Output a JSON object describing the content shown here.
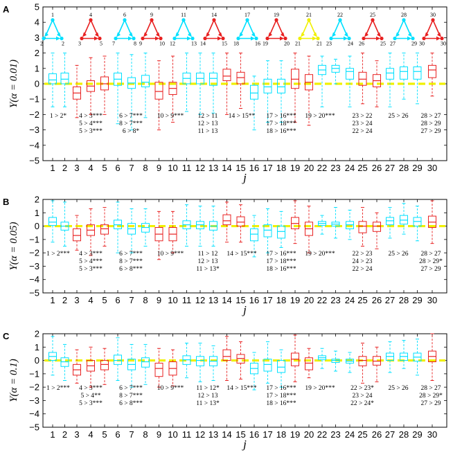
{
  "chart_data": [
    {
      "type": "box",
      "panel_label": "A",
      "ylabel": "Y(α = 0.01)",
      "xlabel": "j",
      "ylim": [
        -5,
        5
      ],
      "yticks": [
        "−5",
        "−4",
        "−3",
        "−2",
        "−1",
        "0",
        "1",
        "2",
        "3",
        "4",
        "5"
      ],
      "categories": [
        "1",
        "2",
        "3",
        "4",
        "5",
        "6",
        "7",
        "8",
        "9",
        "10",
        "11",
        "12",
        "13",
        "14",
        "15",
        "16",
        "17",
        "18",
        "19",
        "20",
        "22",
        "23",
        "24",
        "25",
        "26",
        "27",
        "28",
        "29",
        "30"
      ],
      "boxes": [
        {
          "min": -1.5,
          "q1": 0.0,
          "median": 0.25,
          "q3": 0.65,
          "max": 2.0
        },
        {
          "min": -1.5,
          "q1": 0.0,
          "median": 0.3,
          "q3": 0.7,
          "max": 2.0
        },
        {
          "min": -2.2,
          "q1": -1.0,
          "median": -0.6,
          "q3": -0.2,
          "max": 1.2
        },
        {
          "min": -2.0,
          "q1": -0.5,
          "median": -0.15,
          "q3": 0.2,
          "max": 1.7
        },
        {
          "min": -2.0,
          "q1": -0.4,
          "median": 0.0,
          "q3": 0.45,
          "max": 1.8
        },
        {
          "min": -2.6,
          "q1": -0.1,
          "median": 0.3,
          "q3": 0.7,
          "max": 2.0
        },
        {
          "min": -3.0,
          "q1": -0.3,
          "median": 0.05,
          "q3": 0.4,
          "max": 1.9
        },
        {
          "min": -2.2,
          "q1": -0.2,
          "median": 0.1,
          "q3": 0.55,
          "max": 2.0
        },
        {
          "min": -3.0,
          "q1": -1.0,
          "median": -0.5,
          "q3": 0.1,
          "max": 1.5
        },
        {
          "min": -2.5,
          "q1": -0.7,
          "median": -0.3,
          "q3": 0.1,
          "max": 1.8
        },
        {
          "min": -1.8,
          "q1": 0.0,
          "median": 0.35,
          "q3": 0.7,
          "max": 2.0
        },
        {
          "min": -2.0,
          "q1": 0.0,
          "median": 0.35,
          "q3": 0.7,
          "max": 2.0
        },
        {
          "min": -1.9,
          "q1": -0.1,
          "median": 0.35,
          "q3": 0.7,
          "max": 2.0
        },
        {
          "min": -2.0,
          "q1": 0.2,
          "median": 0.5,
          "q3": 0.95,
          "max": 2.0
        },
        {
          "min": -1.6,
          "q1": 0.0,
          "median": 0.4,
          "q3": 0.75,
          "max": 2.0
        },
        {
          "min": -3.0,
          "q1": -1.0,
          "median": -0.6,
          "q3": -0.1,
          "max": 0.5
        },
        {
          "min": -2.5,
          "q1": -0.6,
          "median": -0.2,
          "q3": 0.3,
          "max": 1.5
        },
        {
          "min": -2.5,
          "q1": -0.6,
          "median": -0.2,
          "q3": 0.3,
          "max": 1.5
        },
        {
          "min": -2.5,
          "q1": -0.3,
          "median": 0.3,
          "q3": 0.95,
          "max": 2.0
        },
        {
          "min": -2.7,
          "q1": -0.4,
          "median": 0.1,
          "q3": 0.6,
          "max": 1.8
        },
        {
          "min": -1.5,
          "q1": 0.6,
          "median": 0.9,
          "q3": 1.2,
          "max": 1.8
        },
        {
          "min": 0.0,
          "q1": 0.75,
          "median": 1.0,
          "q3": 1.2,
          "max": 1.6
        },
        {
          "min": -1.5,
          "q1": 0.3,
          "median": 0.8,
          "q3": 1.0,
          "max": 1.8
        },
        {
          "min": -1.3,
          "q1": -0.1,
          "median": 0.3,
          "q3": 0.75,
          "max": 2.0
        },
        {
          "min": -1.5,
          "q1": -0.2,
          "median": 0.2,
          "q3": 0.6,
          "max": 1.5
        },
        {
          "min": -1.5,
          "q1": 0.3,
          "median": 0.7,
          "q3": 1.0,
          "max": 2.0
        },
        {
          "min": -1.0,
          "q1": 0.3,
          "median": 0.8,
          "q3": 1.1,
          "max": 2.0
        },
        {
          "min": -1.3,
          "q1": 0.3,
          "median": 0.8,
          "q3": 1.1,
          "max": 2.0
        },
        {
          "min": -0.8,
          "q1": 0.4,
          "median": 0.9,
          "q3": 1.2,
          "max": 2.0
        }
      ],
      "annotations": [
        [
          "1 > 2*"
        ],
        [
          "4 > 3***",
          "5 > 4***",
          "5 > 3***"
        ],
        [
          "6 > 7***",
          "8 > 7***",
          "6 > 8*"
        ],
        [
          "10 > 9***"
        ],
        [
          "12 > 11",
          "12 > 13",
          "11 > 13"
        ],
        [
          "14 > 15**"
        ],
        [
          "17 > 16***",
          "17 > 18***",
          "18 > 16***"
        ],
        [
          "19 > 20***"
        ],
        [
          "23 > 22",
          "23 > 24",
          "22 > 24"
        ],
        [
          "25 > 26"
        ],
        [
          "28 > 27",
          "28 > 29",
          "27 > 29"
        ]
      ],
      "motifs": [
        {
          "top": "1",
          "left": "2",
          "right": "2",
          "color": "#00e0ff"
        },
        {
          "top": "4",
          "left": "3",
          "right": "5",
          "color": "#e82020"
        },
        {
          "top": "6",
          "left": "7",
          "right": "8",
          "color": "#00e0ff"
        },
        {
          "top": "9",
          "left": "9",
          "right": "10",
          "color": "#e82020"
        },
        {
          "top": "11",
          "left": "12",
          "right": "13",
          "color": "#00e0ff"
        },
        {
          "top": "14",
          "left": "14",
          "right": "15",
          "color": "#e82020"
        },
        {
          "top": "17",
          "left": "18",
          "right": "16",
          "color": "#00e0ff"
        },
        {
          "top": "19",
          "left": "19",
          "right": "20",
          "color": "#e82020"
        },
        {
          "top": "21",
          "left": "21",
          "right": "21",
          "color": "#f0f000"
        },
        {
          "top": "22",
          "left": "23",
          "right": "24",
          "color": "#00e0ff"
        },
        {
          "top": "25",
          "left": "26",
          "right": "25",
          "color": "#e82020"
        },
        {
          "top": "28",
          "left": "27",
          "right": "29",
          "color": "#00e0ff"
        },
        {
          "top": "30",
          "left": "30",
          "right": "30",
          "color": "#e82020"
        }
      ]
    },
    {
      "type": "box",
      "panel_label": "B",
      "ylabel": "Y(α = 0.05)",
      "xlabel": "j",
      "ylim": [
        -5,
        2
      ],
      "yticks": [
        "−5",
        "−4",
        "−3",
        "−2",
        "−1",
        "0",
        "1",
        "2"
      ],
      "categories": [
        "1",
        "2",
        "3",
        "4",
        "5",
        "6",
        "7",
        "8",
        "9",
        "10",
        "11",
        "12",
        "13",
        "14",
        "15",
        "16",
        "17",
        "18",
        "19",
        "20",
        "22",
        "23",
        "24",
        "25",
        "26",
        "27",
        "28",
        "29",
        "30"
      ],
      "boxes": [
        {
          "min": -1.2,
          "q1": 0.05,
          "median": 0.3,
          "q3": 0.65,
          "max": 1.9
        },
        {
          "min": -1.5,
          "q1": -0.3,
          "median": 0.0,
          "q3": 0.3,
          "max": 1.8
        },
        {
          "min": -1.8,
          "q1": -1.1,
          "median": -0.7,
          "q3": -0.2,
          "max": 0.8
        },
        {
          "min": -2.2,
          "q1": -0.7,
          "median": -0.3,
          "q3": 0.1,
          "max": 1.3
        },
        {
          "min": -1.5,
          "q1": -0.6,
          "median": -0.2,
          "q3": 0.1,
          "max": 1.4
        },
        {
          "min": -2.0,
          "q1": -0.2,
          "median": 0.1,
          "q3": 0.45,
          "max": 1.8
        },
        {
          "min": -2.0,
          "q1": -0.6,
          "median": -0.2,
          "q3": 0.2,
          "max": 1.3
        },
        {
          "min": -1.5,
          "q1": -0.45,
          "median": -0.1,
          "q3": 0.2,
          "max": 1.3
        },
        {
          "min": -2.5,
          "q1": -1.1,
          "median": -0.6,
          "q3": -0.1,
          "max": 1.1
        },
        {
          "min": -2.0,
          "q1": -1.1,
          "median": -0.6,
          "q3": -0.1,
          "max": 1.1
        },
        {
          "min": -1.5,
          "q1": -0.2,
          "median": 0.1,
          "q3": 0.4,
          "max": 1.6
        },
        {
          "min": -1.5,
          "q1": -0.2,
          "median": 0.1,
          "q3": 0.35,
          "max": 1.5
        },
        {
          "min": -1.5,
          "q1": -0.3,
          "median": 0.0,
          "q3": 0.35,
          "max": 1.5
        },
        {
          "min": -1.2,
          "q1": 0.1,
          "median": 0.4,
          "q3": 0.85,
          "max": 1.8
        },
        {
          "min": -1.2,
          "q1": 0.0,
          "median": 0.3,
          "q3": 0.7,
          "max": 1.6
        },
        {
          "min": -2.3,
          "q1": -1.1,
          "median": -0.6,
          "q3": -0.2,
          "max": 0.8
        },
        {
          "min": -2.0,
          "q1": -0.8,
          "median": -0.3,
          "q3": 0.1,
          "max": 1.3
        },
        {
          "min": -1.6,
          "q1": -0.9,
          "median": -0.4,
          "q3": 0.0,
          "max": 1.1
        },
        {
          "min": -1.3,
          "q1": -0.2,
          "median": 0.2,
          "q3": 0.65,
          "max": 1.9
        },
        {
          "min": -2.0,
          "q1": -0.7,
          "median": -0.2,
          "q3": 0.3,
          "max": 1.5
        },
        {
          "min": -0.6,
          "q1": 0.05,
          "median": 0.2,
          "q3": 0.35,
          "max": 0.8
        },
        {
          "min": -0.9,
          "q1": 0.0,
          "median": 0.15,
          "q3": 0.3,
          "max": 1.4
        },
        {
          "min": -1.0,
          "q1": -0.2,
          "median": 0.1,
          "q3": 0.35,
          "max": 1.2
        },
        {
          "min": -1.5,
          "q1": -0.5,
          "median": 0.0,
          "q3": 0.35,
          "max": 1.4
        },
        {
          "min": -1.7,
          "q1": -0.4,
          "median": 0.0,
          "q3": 0.3,
          "max": 1.0
        },
        {
          "min": -0.9,
          "q1": 0.1,
          "median": 0.4,
          "q3": 0.65,
          "max": 1.4
        },
        {
          "min": -0.6,
          "q1": 0.15,
          "median": 0.45,
          "q3": 0.8,
          "max": 1.7
        },
        {
          "min": -1.1,
          "q1": 0.0,
          "median": 0.35,
          "q3": 0.65,
          "max": 1.5
        },
        {
          "min": -1.3,
          "q1": -0.1,
          "median": 0.3,
          "q3": 0.75,
          "max": 1.9
        }
      ],
      "annotations": [
        [
          "1 > 2***"
        ],
        [
          "4 > 3***",
          "5 > 4***",
          "5 > 3***"
        ],
        [
          "6 > 7***",
          "8 > 7***",
          "6 > 8***"
        ],
        [
          "10 > 9***"
        ],
        [
          "11 > 12",
          "12 > 13",
          "11 > 13*"
        ],
        [
          "14 > 15***"
        ],
        [
          "17 > 16***",
          "17 > 18***",
          "18 > 16***"
        ],
        [
          "19 > 20***"
        ],
        [
          "22 > 23",
          "24 > 23",
          "22 > 24"
        ],
        [
          "25 > 26"
        ],
        [
          "28 > 27",
          "28 > 29*",
          "27 > 29"
        ]
      ]
    },
    {
      "type": "box",
      "panel_label": "C",
      "ylabel": "Y(α = 0.1)",
      "xlabel": "j",
      "ylim": [
        -5,
        2
      ],
      "yticks": [
        "−5",
        "−4",
        "−3",
        "−2",
        "−1",
        "0",
        "1",
        "2"
      ],
      "categories": [
        "1",
        "2",
        "3",
        "4",
        "5",
        "6",
        "7",
        "8",
        "9",
        "10",
        "11",
        "12",
        "13",
        "14",
        "15",
        "16",
        "17",
        "18",
        "19",
        "20",
        "22",
        "23",
        "24",
        "25",
        "26",
        "27",
        "28",
        "29",
        "30"
      ],
      "boxes": [
        {
          "min": -1.1,
          "q1": 0.0,
          "median": 0.3,
          "q3": 0.6,
          "max": 1.8
        },
        {
          "min": -1.5,
          "q1": -0.45,
          "median": -0.1,
          "q3": 0.2,
          "max": 1.2
        },
        {
          "min": -1.7,
          "q1": -1.1,
          "median": -0.7,
          "q3": -0.3,
          "max": 0.8
        },
        {
          "min": -2.0,
          "q1": -0.8,
          "median": -0.4,
          "q3": 0.0,
          "max": 1.0
        },
        {
          "min": -1.8,
          "q1": -0.7,
          "median": -0.3,
          "q3": 0.0,
          "max": 0.9
        },
        {
          "min": -1.5,
          "q1": -0.3,
          "median": 0.0,
          "q3": 0.4,
          "max": 1.7
        },
        {
          "min": -2.0,
          "q1": -0.7,
          "median": -0.3,
          "q3": 0.1,
          "max": 1.2
        },
        {
          "min": -1.8,
          "q1": -0.5,
          "median": -0.1,
          "q3": 0.2,
          "max": 1.2
        },
        {
          "min": -2.0,
          "q1": -1.2,
          "median": -0.6,
          "q3": -0.2,
          "max": 0.9
        },
        {
          "min": -1.9,
          "q1": -1.1,
          "median": -0.6,
          "q3": -0.1,
          "max": 0.8
        },
        {
          "min": -1.3,
          "q1": -0.3,
          "median": 0.05,
          "q3": 0.35,
          "max": 1.3
        },
        {
          "min": -1.6,
          "q1": -0.4,
          "median": 0.0,
          "q3": 0.3,
          "max": 1.3
        },
        {
          "min": -1.5,
          "q1": -0.4,
          "median": -0.05,
          "q3": 0.3,
          "max": 1.1
        },
        {
          "min": -1.5,
          "q1": 0.0,
          "median": 0.3,
          "q3": 0.8,
          "max": 1.8
        },
        {
          "min": -1.4,
          "q1": -0.2,
          "median": 0.15,
          "q3": 0.45,
          "max": 1.4
        },
        {
          "min": -2.2,
          "q1": -1.0,
          "median": -0.6,
          "q3": -0.2,
          "max": 0.6
        },
        {
          "min": -1.7,
          "q1": -0.8,
          "median": -0.3,
          "q3": 0.1,
          "max": 1.4
        },
        {
          "min": -2.0,
          "q1": -0.9,
          "median": -0.5,
          "q3": 0.0,
          "max": 0.8
        },
        {
          "min": -1.6,
          "q1": -0.4,
          "median": 0.1,
          "q3": 0.55,
          "max": 1.9
        },
        {
          "min": -1.3,
          "q1": -0.7,
          "median": -0.2,
          "q3": 0.2,
          "max": 0.9
        },
        {
          "min": -0.6,
          "q1": 0.05,
          "median": 0.2,
          "q3": 0.35,
          "max": 0.9
        },
        {
          "min": -0.8,
          "q1": -0.15,
          "median": 0.0,
          "q3": 0.1,
          "max": 0.7
        },
        {
          "min": -0.9,
          "q1": -0.2,
          "median": -0.05,
          "q3": 0.1,
          "max": 0.6
        },
        {
          "min": -1.7,
          "q1": -0.4,
          "median": 0.0,
          "q3": 0.3,
          "max": 1.3
        },
        {
          "min": -1.6,
          "q1": -0.35,
          "median": -0.05,
          "q3": 0.3,
          "max": 1.0
        },
        {
          "min": -0.9,
          "q1": 0.0,
          "median": 0.3,
          "q3": 0.55,
          "max": 1.4
        },
        {
          "min": -0.6,
          "q1": 0.0,
          "median": 0.3,
          "q3": 0.55,
          "max": 1.5
        },
        {
          "min": -1.1,
          "q1": -0.05,
          "median": 0.25,
          "q3": 0.55,
          "max": 1.6
        },
        {
          "min": -1.5,
          "q1": -0.1,
          "median": 0.3,
          "q3": 0.7,
          "max": 2.0
        }
      ],
      "annotations": [
        [
          "1 > 2***"
        ],
        [
          "4 > 3***",
          "5 > 4**",
          "5 > 3***"
        ],
        [
          "6 > 7***",
          "8 > 7***",
          "6 > 8***"
        ],
        [
          "10 > 9***"
        ],
        [
          "11 > 12*",
          "12 > 13",
          "11 > 13*"
        ],
        [
          "14 > 15***"
        ],
        [
          "17 > 16***",
          "17 > 18***",
          "18 > 16***"
        ],
        [
          "19 > 20***"
        ],
        [
          "22 > 23*",
          "23 > 24",
          "22 > 24*"
        ],
        [
          "25 > 26"
        ],
        [
          "28 > 27",
          "28 > 29*",
          "27 > 29"
        ]
      ]
    }
  ],
  "colors": {
    "cyan": "#00e0ff",
    "red": "#e82020",
    "zero_line": "#f0f000"
  },
  "box_colors": [
    "cyan",
    "cyan",
    "red",
    "red",
    "red",
    "cyan",
    "cyan",
    "cyan",
    "red",
    "red",
    "cyan",
    "cyan",
    "cyan",
    "red",
    "red",
    "cyan",
    "cyan",
    "cyan",
    "red",
    "red",
    "cyan",
    "cyan",
    "cyan",
    "red",
    "red",
    "cyan",
    "cyan",
    "cyan",
    "red"
  ]
}
